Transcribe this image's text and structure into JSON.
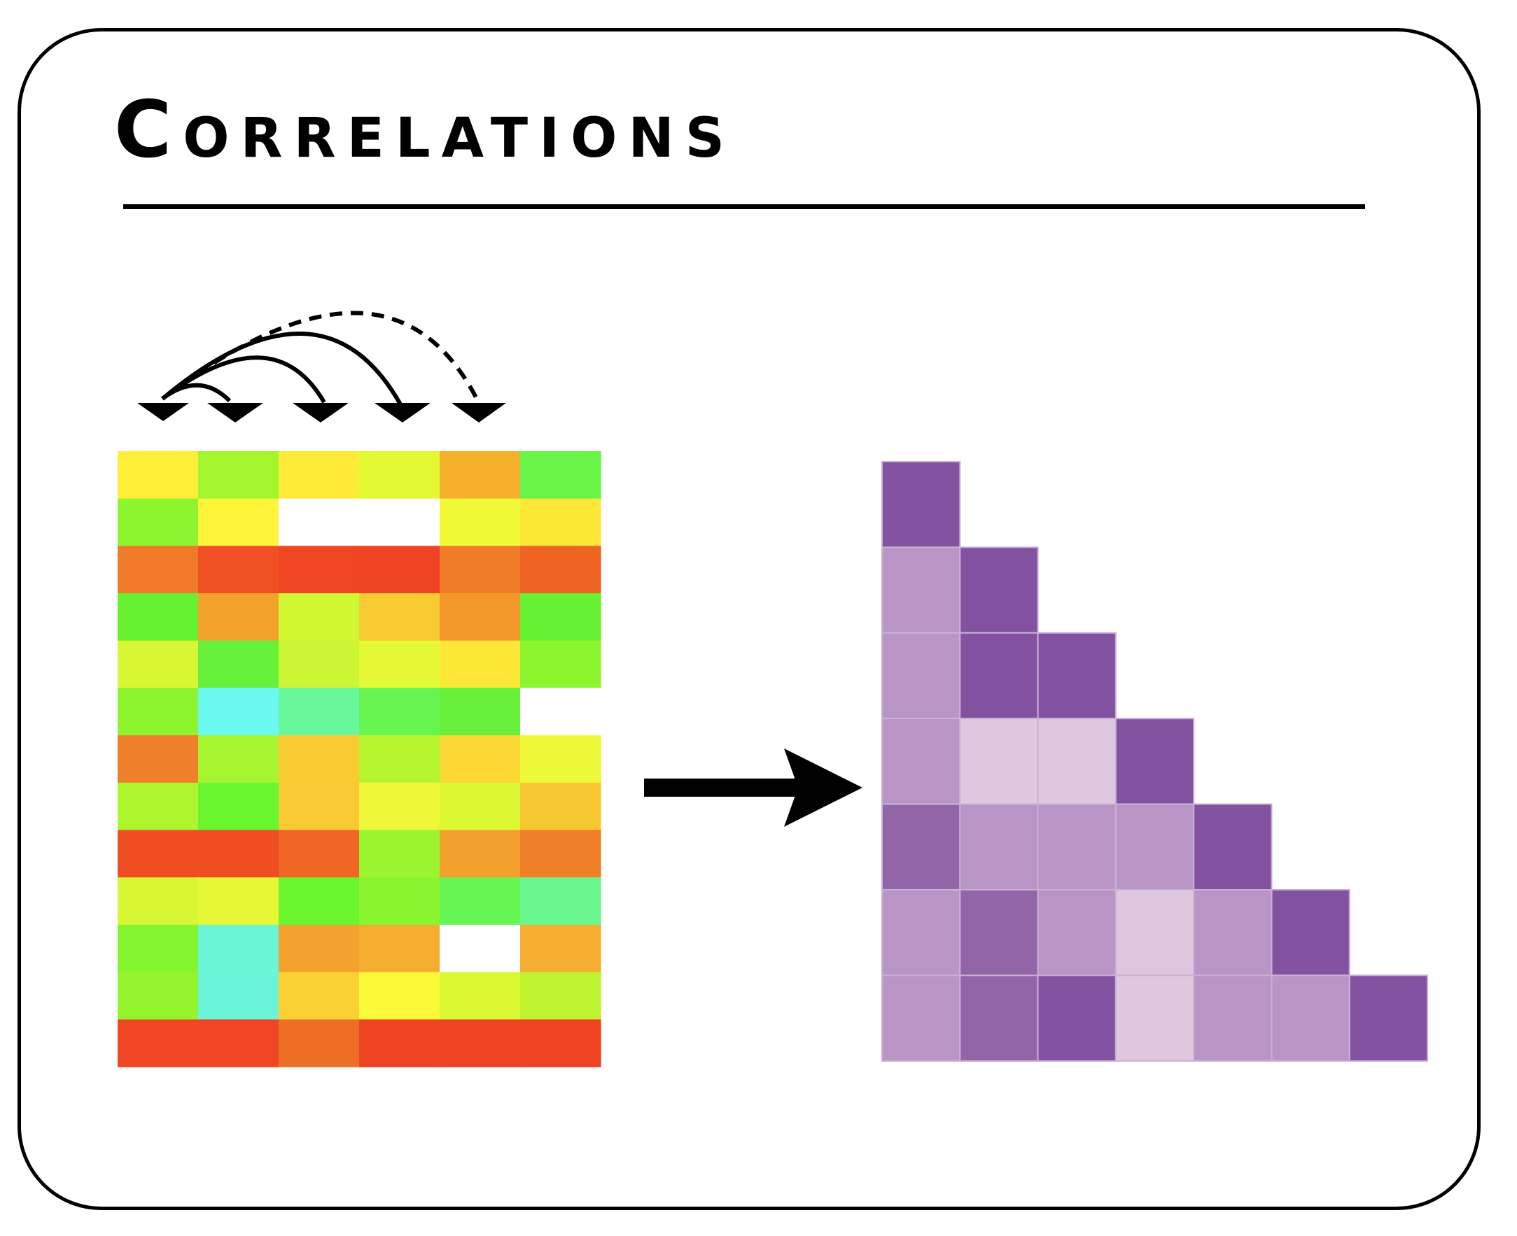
{
  "title": "Correlations",
  "colors": {
    "frame": "#000000",
    "arrow": "#000000"
  },
  "arc_icon": {
    "arrowheads": 5,
    "solid_arcs": 3,
    "dashed_arcs": 1
  },
  "heatmap": {
    "rows": 13,
    "cols": 6,
    "cells": [
      [
        "#fdee38",
        "#a3f52e",
        "#fde938",
        "#e2f833",
        "#f5b12c",
        "#68f547"
      ],
      [
        "#8df52e",
        "#fef43a",
        "#ffffff",
        "#ffffff",
        "#f0f936",
        "#fde838"
      ],
      [
        "#f07a29",
        "#ef5024",
        "#ef4623",
        "#ef4423",
        "#f07b29",
        "#ef6325"
      ],
      [
        "#66f030",
        "#f4a22b",
        "#d2f733",
        "#f9cb33",
        "#f3992b",
        "#68f033"
      ],
      [
        "#d8f633",
        "#66f23a",
        "#ccf533",
        "#e5f836",
        "#fde837",
        "#8df52e"
      ],
      [
        "#8df52e",
        "#6af8f0",
        "#68f79a",
        "#68f552",
        "#68f03a",
        "#ffffff"
      ],
      [
        "#f08029",
        "#a6f52e",
        "#f9cb33",
        "#b6f52e",
        "#fbd836",
        "#edf838"
      ],
      [
        "#adf52e",
        "#6af52e",
        "#f9c933",
        "#eef838",
        "#dbf833",
        "#f8c833"
      ],
      [
        "#ef4e23",
        "#ef4e23",
        "#ef6625",
        "#9af52e",
        "#f4a02c",
        "#f08029"
      ],
      [
        "#d8f633",
        "#e5f836",
        "#6af52e",
        "#8af52e",
        "#66f552",
        "#6af58e"
      ],
      [
        "#82f52e",
        "#6af5d6",
        "#f4a22e",
        "#f4ad2e",
        "#ffffff",
        "#f4ae30"
      ],
      [
        "#94f52e",
        "#6af5d8",
        "#f9d133",
        "#fbfa38",
        "#dbf833",
        "#bef52e"
      ],
      [
        "#ef4723",
        "#ef4723",
        "#ef6e25",
        "#ef4423",
        "#ef4423",
        "#ef4423"
      ]
    ]
  },
  "triangle": {
    "size": 7,
    "colors": {
      "dark": "#8252a1",
      "medium": "#9265a9",
      "light": "#b995c5",
      "pale": "#dec8e0"
    },
    "rows": [
      [
        "dark"
      ],
      [
        "light",
        "dark"
      ],
      [
        "light",
        "dark",
        "dark"
      ],
      [
        "light",
        "pale",
        "pale",
        "dark"
      ],
      [
        "medium",
        "light",
        "light",
        "light",
        "dark"
      ],
      [
        "light",
        "medium",
        "light",
        "pale",
        "light",
        "dark"
      ],
      [
        "light",
        "medium",
        "dark",
        "pale",
        "light",
        "light",
        "dark"
      ]
    ]
  }
}
